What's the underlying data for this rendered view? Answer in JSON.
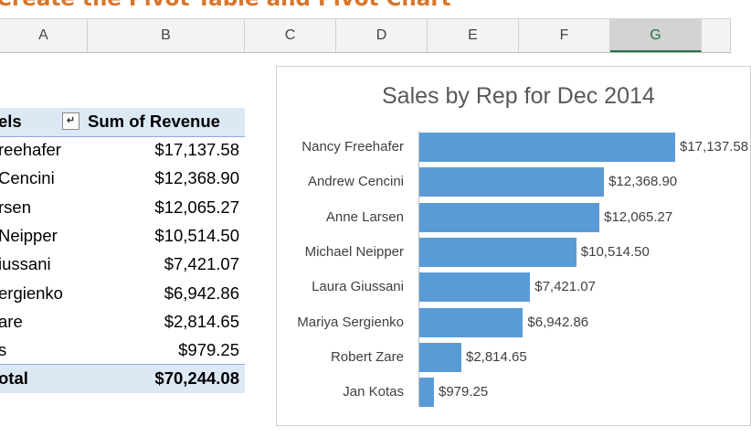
{
  "banner": {
    "text": "Create the Pivot Table and Pivot Chart"
  },
  "columns": [
    {
      "letter": "A",
      "selected": false
    },
    {
      "letter": "B",
      "selected": false
    },
    {
      "letter": "C",
      "selected": false
    },
    {
      "letter": "D",
      "selected": false
    },
    {
      "letter": "E",
      "selected": false
    },
    {
      "letter": "F",
      "selected": false
    },
    {
      "letter": "G",
      "selected": true
    }
  ],
  "pivot": {
    "header_label": "els",
    "filter_icon": "sort-descending-filter-icon",
    "sum_label": "Sum of Revenue",
    "rows": [
      {
        "name": "reehafer",
        "value": "$17,137.58"
      },
      {
        "name": " Cencini",
        "value": "$12,368.90"
      },
      {
        "name": "rsen",
        "value": "$12,065.27"
      },
      {
        "name": " Neipper",
        "value": "$10,514.50"
      },
      {
        "name": "iussani",
        "value": "$7,421.07"
      },
      {
        "name": "ergienko",
        "value": "$6,942.86"
      },
      {
        "name": "are",
        "value": "$2,814.65"
      },
      {
        "name": "s",
        "value": "$979.25"
      }
    ],
    "total_label": "otal",
    "total_value": "$70,244.08"
  },
  "chart_data": {
    "type": "bar",
    "orientation": "horizontal",
    "title": "Sales by Rep for Dec 2014",
    "categories": [
      "Nancy Freehafer",
      "Andrew Cencini",
      "Anne Larsen",
      "Michael Neipper",
      "Laura Giussani",
      "Mariya Sergienko",
      "Robert Zare",
      "Jan Kotas"
    ],
    "values": [
      17137.58,
      12368.9,
      12065.27,
      10514.5,
      7421.07,
      6942.86,
      2814.65,
      979.25
    ],
    "data_labels": [
      "$17,137.58",
      "$12,368.90",
      "$12,065.27",
      "$10,514.50",
      "$7,421.07",
      "$6,942.86",
      "$2,814.65",
      "$979.25"
    ],
    "xlabel": "",
    "ylabel": "",
    "grid": false,
    "legend": "none",
    "bar_color": "#5b9bd5"
  }
}
